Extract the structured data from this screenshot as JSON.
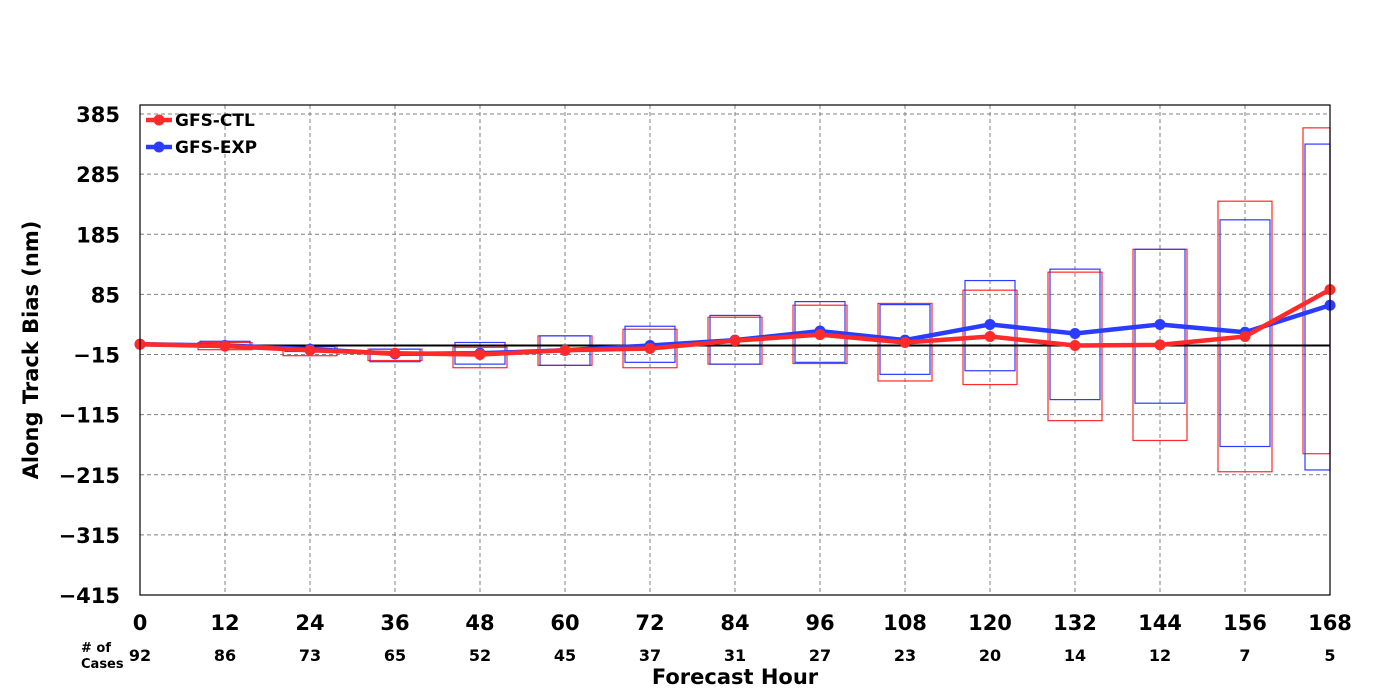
{
  "chart_data": {
    "type": "line",
    "title": "",
    "xlabel": "Forecast Hour",
    "ylabel": "Along Track Bias (nm)",
    "cases_label_line1": "# of",
    "cases_label_line2": "Cases",
    "x": [
      0,
      12,
      24,
      36,
      48,
      60,
      72,
      84,
      96,
      108,
      120,
      132,
      144,
      156,
      168
    ],
    "x_ticks": [
      "0",
      "12",
      "24",
      "36",
      "48",
      "60",
      "72",
      "84",
      "96",
      "108",
      "120",
      "132",
      "144",
      "156",
      "168"
    ],
    "y_ticks": [
      385,
      285,
      185,
      85,
      -15,
      -115,
      -215,
      -315,
      -415
    ],
    "y_tick_labels": [
      "385",
      "285",
      "185",
      "85",
      "−15",
      "−115",
      "−215",
      "−315",
      "−415"
    ],
    "ylim": [
      -415,
      400
    ],
    "xlim": [
      0,
      168
    ],
    "zero_line": 0,
    "grid": true,
    "legend_position": "top-left",
    "cases": [
      "92",
      "86",
      "73",
      "65",
      "52",
      "45",
      "37",
      "31",
      "27",
      "23",
      "20",
      "14",
      "12",
      "7",
      "5"
    ],
    "series": [
      {
        "name": "GFS-CTL",
        "color": "#ff2a2a",
        "values": [
          2,
          -1,
          -8,
          -13,
          -15,
          -8,
          -5,
          8,
          18,
          5,
          15,
          0,
          1,
          15,
          93
        ],
        "box_low": [
          2,
          -7,
          -17,
          -25,
          -37,
          -33,
          -37,
          -31,
          -30,
          -59,
          -65,
          -125,
          -158,
          -210,
          -180
        ],
        "box_high": [
          2,
          5,
          0,
          -6,
          -3,
          16,
          27,
          47,
          67,
          70,
          92,
          122,
          160,
          240,
          362
        ]
      },
      {
        "name": "GFS-EXP",
        "color": "#2a3cff",
        "values": [
          2,
          0,
          -6,
          -14,
          -13,
          -8,
          0,
          9,
          24,
          9,
          35,
          20,
          35,
          22,
          67
        ],
        "box_low": [
          2,
          -3,
          -10,
          -27,
          -31,
          -33,
          -28,
          -31,
          -28,
          -48,
          -42,
          -90,
          -96,
          -168,
          -207
        ],
        "box_high": [
          2,
          7,
          -2,
          -6,
          5,
          16,
          32,
          50,
          73,
          68,
          108,
          127,
          160,
          209,
          335
        ]
      }
    ]
  }
}
